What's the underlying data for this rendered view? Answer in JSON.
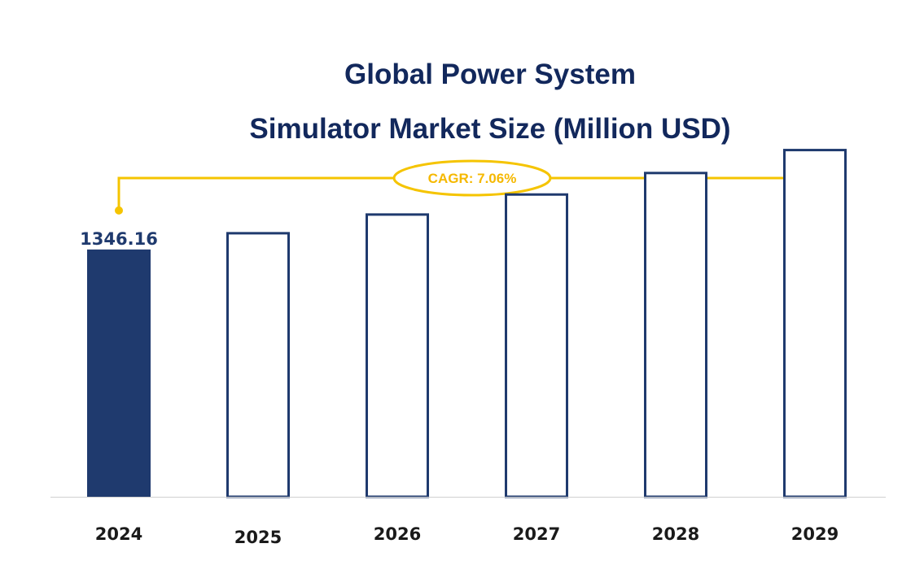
{
  "chart_data": {
    "type": "bar",
    "title_lines": [
      "Global Power System",
      "Simulator Market Size (Million USD)"
    ],
    "categories": [
      "2024",
      "2025",
      "2026",
      "2027",
      "2028",
      "2029"
    ],
    "values": [
      1346.16,
      1441.2,
      1543.0,
      1652.0,
      1769.0,
      1894.0
    ],
    "value_labels": [
      "1346.16",
      "",
      "",
      "",
      "",
      ""
    ],
    "cagr_label": "CAGR: 7.06%",
    "xlabel": "",
    "ylabel": "",
    "ylim": [
      0,
      2660
    ],
    "grid": false,
    "legend": "none",
    "colors": {
      "filled_bar": "#1f3a6e",
      "outline_bar": "#1f3a6e",
      "cagr": "#f5c400",
      "title": "#12285c",
      "axis": "#d0d0d0"
    }
  }
}
